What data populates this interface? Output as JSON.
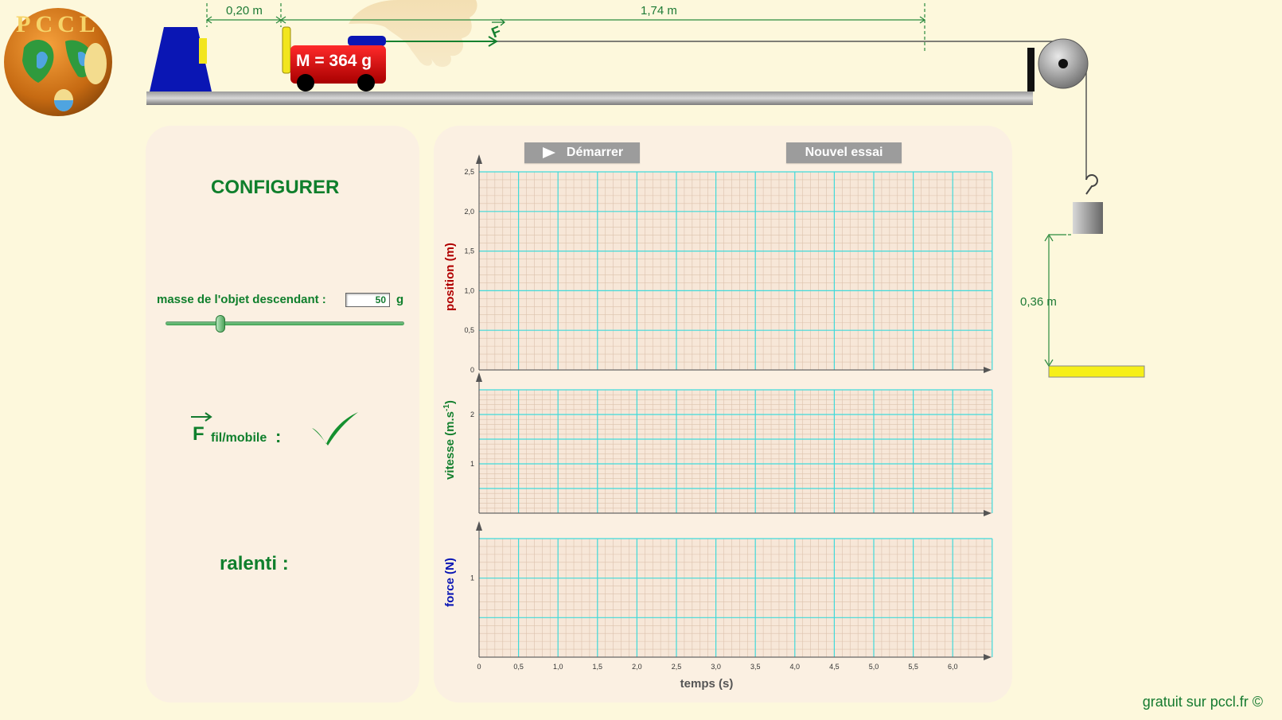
{
  "scene": {
    "dist_left": "0,20 m",
    "dist_right": "1,74 m",
    "force_symbol": "F",
    "cart_label": "M = 364 g",
    "height_label": "0,36 m",
    "logo_letters": "PCCL"
  },
  "config": {
    "title": "CONFIGURER",
    "mass_label": "masse de l'objet descendant :",
    "mass_value": "50",
    "mass_unit": "g",
    "slider_level": 0.22,
    "force_symbol": "F",
    "force_subscript": "fil/mobile",
    "force_colon": ":",
    "slow_label": "ralenti :"
  },
  "controls": {
    "start_label": "Démarrer",
    "retry_label": "Nouvel essai"
  },
  "charts": {
    "xlabel": "temps (s)",
    "x_ticks": [
      "0",
      "0,5",
      "1,0",
      "1,5",
      "2,0",
      "2,5",
      "3,0",
      "3,5",
      "4,0",
      "4,5",
      "5,0",
      "5,5",
      "6,0"
    ],
    "position": {
      "ylabel": "position (m)",
      "y_ticks": [
        "0",
        "0,5",
        "1,0",
        "1,5",
        "2,0",
        "2,5"
      ]
    },
    "velocity": {
      "ylabel_main": "vitesse (m.s",
      "ylabel_sup": "-1",
      "ylabel_end": ")",
      "y_ticks": [
        "1",
        "2"
      ]
    },
    "force": {
      "ylabel": "force (N)",
      "y_ticks": [
        "1"
      ]
    }
  },
  "chart_data": [
    {
      "type": "line",
      "title": "",
      "xlabel": "temps (s)",
      "ylabel": "position (m)",
      "xlim": [
        0,
        6.5
      ],
      "ylim": [
        0,
        2.5
      ],
      "series": []
    },
    {
      "type": "line",
      "title": "",
      "xlabel": "temps (s)",
      "ylabel": "vitesse (m.s-1)",
      "xlim": [
        0,
        6.5
      ],
      "ylim": [
        0,
        2.5
      ],
      "series": []
    },
    {
      "type": "line",
      "title": "",
      "xlabel": "temps (s)",
      "ylabel": "force (N)",
      "xlim": [
        0,
        6.5
      ],
      "ylim": [
        0,
        1.5
      ],
      "series": []
    }
  ],
  "footer": "gratuit sur pccl.fr ©"
}
